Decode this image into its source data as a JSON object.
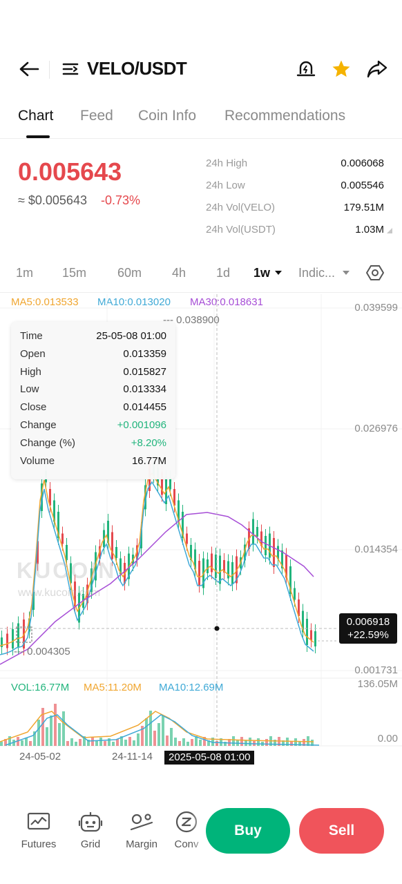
{
  "header": {
    "title": "VELO/USDT",
    "back_icon": "back-arrow-icon",
    "menu_icon": "pair-list-icon",
    "alert_icon": "price-alert-icon",
    "favorite_icon": "star-icon",
    "share_icon": "share-icon"
  },
  "tabs": [
    {
      "label": "Chart",
      "active": true
    },
    {
      "label": "Feed"
    },
    {
      "label": "Coin Info"
    },
    {
      "label": "Recommendations"
    }
  ],
  "price": {
    "last": "0.005643",
    "usd": "≈ $0.005643",
    "change": "-0.73%",
    "colors": {
      "down": "#e5484d",
      "up": "#21b47c"
    }
  },
  "stats": [
    {
      "label": "24h High",
      "value": "0.006068"
    },
    {
      "label": "24h Low",
      "value": "0.005546"
    },
    {
      "label": "24h Vol(VELO)",
      "value": "179.51M"
    },
    {
      "label": "24h Vol(USDT)",
      "value": "1.03M"
    }
  ],
  "intervals": [
    {
      "label": "1m"
    },
    {
      "label": "15m"
    },
    {
      "label": "60m"
    },
    {
      "label": "4h"
    },
    {
      "label": "1d"
    },
    {
      "label": "1w",
      "active": true
    },
    {
      "label": "Indic..."
    }
  ],
  "settings_icon": "settings-hexagon-icon",
  "chart": {
    "ma_legend": {
      "ma5": "MA5:0.013533",
      "ma10": "MA10:0.013020",
      "ma30": "MA30:0.018631"
    },
    "price_axis": [
      "0.039599",
      "0.026976",
      "0.014354",
      "0.001731"
    ],
    "high_marker": "0.038900",
    "low_marker": "0.004305",
    "current_price": "0.006918",
    "current_change": "+22.59%",
    "watermark": "KUCOIN",
    "watermark_url": "www.kucoin.com",
    "tooltip": [
      {
        "k": "Time",
        "v": "25-05-08 01:00"
      },
      {
        "k": "Open",
        "v": "0.013359"
      },
      {
        "k": "High",
        "v": "0.015827"
      },
      {
        "k": "Low",
        "v": "0.013334"
      },
      {
        "k": "Close",
        "v": "0.014455"
      },
      {
        "k": "Change",
        "v": "+0.001096",
        "green": true
      },
      {
        "k": "Change (%)",
        "v": "+8.20%",
        "green": true
      },
      {
        "k": "Volume",
        "v": "16.77M"
      }
    ],
    "volume_legend": {
      "vol": "VOL:16.77M",
      "ma5": "MA5:11.20M",
      "ma10": "MA10:12.69M"
    },
    "volume_axis": [
      "136.05M",
      "0.00"
    ],
    "time_axis": [
      "24-05-02",
      "24-11-14"
    ],
    "crosshair_time": "2025-05-08 01:00",
    "colors": {
      "ma5": "#f0a630",
      "ma10": "#3fa9d6",
      "ma30": "#a64dd6",
      "up": "#21b47c",
      "down": "#e5484d"
    }
  },
  "bottom_nav": [
    {
      "label": "Futures",
      "icon": "futures-chart-icon"
    },
    {
      "label": "Grid",
      "icon": "grid-bot-icon"
    },
    {
      "label": "Margin",
      "icon": "margin-icon"
    },
    {
      "label": "Conv",
      "icon": "convert-icon"
    }
  ],
  "actions": {
    "buy": "Buy",
    "sell": "Sell"
  }
}
